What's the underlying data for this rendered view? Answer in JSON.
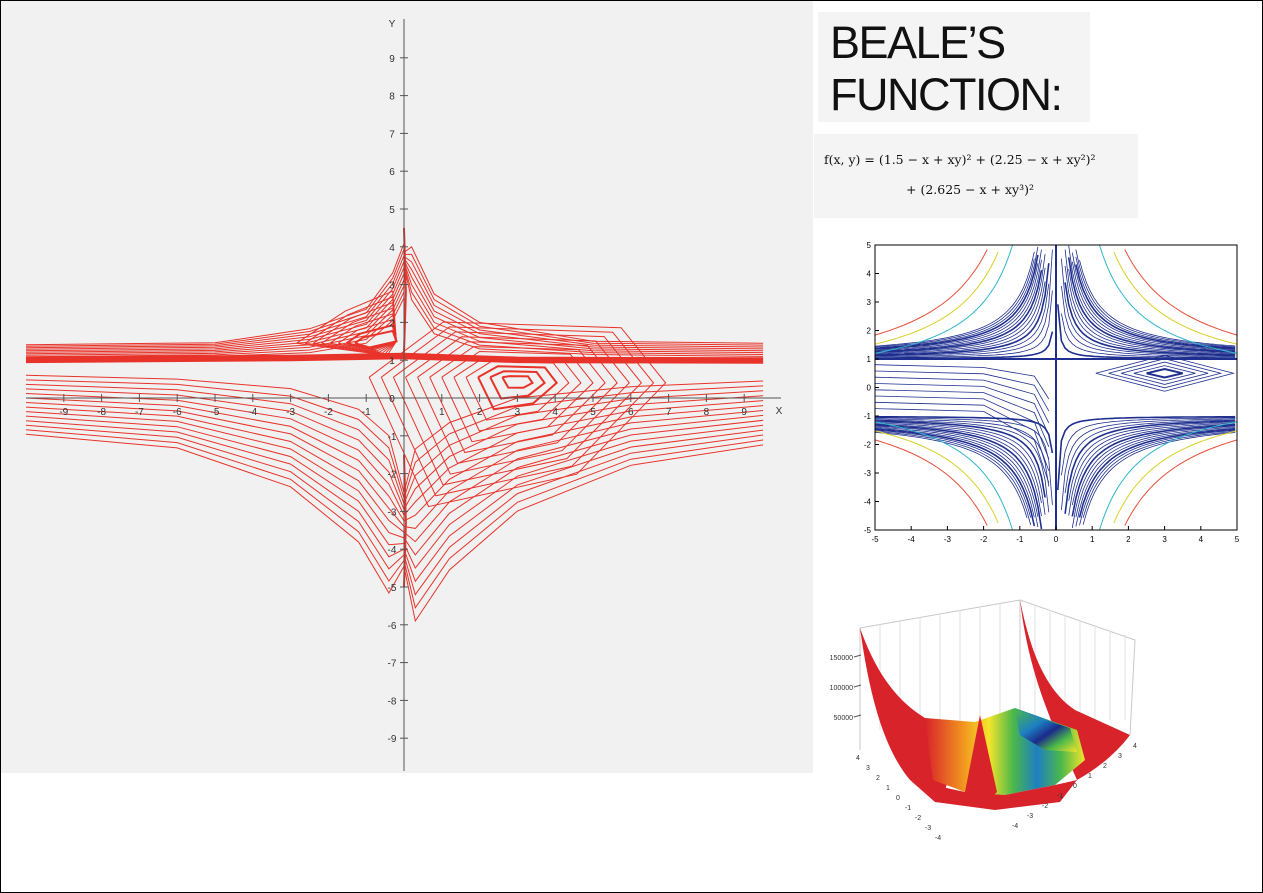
{
  "title": {
    "line1": "BEALE’S",
    "line2": "FUNCTION:"
  },
  "formula": {
    "line1": "f(x, y) = (1.5 − x + xy)² + (2.25 − x + xy²)²",
    "line2": "+ (2.625 − x + xy³)²"
  },
  "chart_data": [
    {
      "type": "line",
      "description_label": "contour",
      "xlabel": "X",
      "ylabel": "Y",
      "xlim": [
        -10,
        10
      ],
      "ylim": [
        -10,
        10
      ],
      "x_ticks": [
        "-9",
        "-8",
        "-7",
        "-6",
        "-5",
        "-4",
        "-3",
        "-2",
        "-1",
        "0",
        "1",
        "2",
        "3",
        "4",
        "5",
        "6",
        "7",
        "8",
        "9"
      ],
      "y_ticks": [
        "9",
        "8",
        "7",
        "6",
        "5",
        "4",
        "3",
        "2",
        "1",
        "0",
        "-1",
        "-2",
        "-3",
        "-4",
        "-5",
        "-6",
        "-7",
        "-8",
        "-9"
      ],
      "line_color": "#e8332a",
      "grid": false
    },
    {
      "type": "line",
      "xlim": [
        -5,
        5
      ],
      "ylim": [
        -5,
        5
      ],
      "x_ticks": [
        "-5",
        "-4",
        "-3",
        "-2",
        "-1",
        "0",
        "1",
        "2",
        "3",
        "4",
        "5"
      ],
      "y_ticks": [
        "5",
        "4",
        "3",
        "2",
        "1",
        "0",
        "-1",
        "-2",
        "-3",
        "-4",
        "-5"
      ],
      "line_color": "#1f2f8f",
      "outer_colors": [
        "#2fb6c8",
        "#d8d02a",
        "#e6503a"
      ],
      "grid": false
    },
    {
      "type": "area",
      "z_ticks": [
        "150000",
        "100000",
        "50000"
      ],
      "x_ticks": [
        "4",
        "3",
        "2",
        "1",
        "0",
        "-1",
        "-2",
        "-3",
        "-4"
      ],
      "y_ticks": [
        "-4",
        "-3",
        "-2",
        "-1",
        "0",
        "1",
        "2",
        "3",
        "4"
      ],
      "colors": [
        "#d9232a",
        "#f29a1f",
        "#f4e52b",
        "#4bb84a",
        "#1d7fc1",
        "#1b2a8a"
      ],
      "grid": true
    }
  ]
}
